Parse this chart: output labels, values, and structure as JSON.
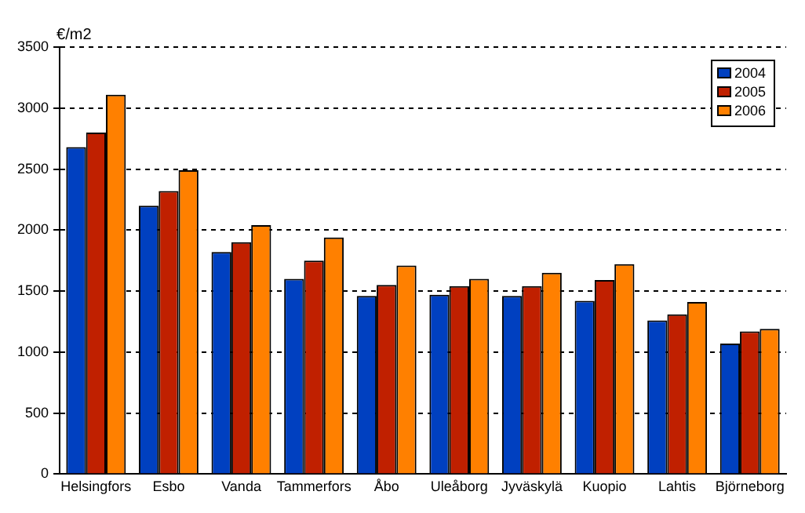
{
  "chart_data": {
    "type": "bar",
    "ylabel": "€/m2",
    "categories": [
      "Helsingfors",
      "Esbo",
      "Vanda",
      "Tammerfors",
      "Åbo",
      "Uleåborg",
      "Jyväskylä",
      "Kuopio",
      "Lahtis",
      "Björneborg"
    ],
    "series": [
      {
        "name": "2004",
        "color": "#0040c0",
        "values": [
          2680,
          2200,
          1820,
          1600,
          1460,
          1470,
          1460,
          1420,
          1260,
          1070
        ]
      },
      {
        "name": "2005",
        "color": "#c02000",
        "values": [
          2800,
          2320,
          1900,
          1750,
          1550,
          1540,
          1540,
          1590,
          1310,
          1170
        ]
      },
      {
        "name": "2006",
        "color": "#ff8000",
        "values": [
          3110,
          2490,
          2040,
          1940,
          1710,
          1600,
          1650,
          1720,
          1410,
          1190
        ]
      }
    ],
    "ylim": [
      0,
      3500
    ],
    "yticks": [
      0,
      500,
      1000,
      1500,
      2000,
      2500,
      3000,
      3500
    ],
    "grid": "y",
    "legend": "top right"
  }
}
